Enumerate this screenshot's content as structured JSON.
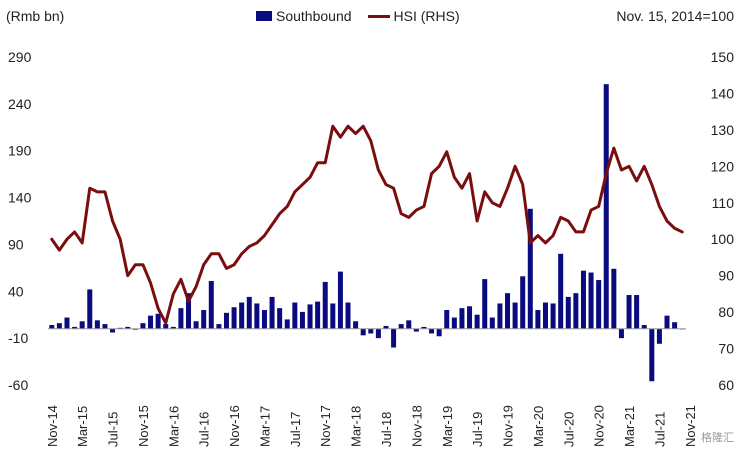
{
  "header": {
    "left_unit": "(Rmb bn)",
    "base_note": "Nov. 15, 2014=100"
  },
  "legend": {
    "bar_label": "Southbound",
    "line_label": "HSI (RHS)"
  },
  "watermark": "格隆汇",
  "colors": {
    "bar": "#0b0b80",
    "line": "#7a0e0e",
    "axis": "#888888"
  },
  "chart_data": {
    "type": "bar+line",
    "title": "",
    "x_tick_labels": [
      "Nov-14",
      "Mar-15",
      "Jul-15",
      "Nov-15",
      "Mar-16",
      "Jul-16",
      "Nov-16",
      "Mar-17",
      "Jul-17",
      "Nov-17",
      "Mar-18",
      "Jul-18",
      "Nov-18",
      "Mar-19",
      "Jul-19",
      "Nov-19",
      "Mar-20",
      "Jul-20",
      "Nov-20",
      "Mar-21",
      "Jul-21",
      "Nov-21"
    ],
    "left_axis": {
      "label": "Rmb bn",
      "ylim": [
        -60,
        290
      ],
      "ticks": [
        290,
        240,
        190,
        140,
        90,
        40,
        -10,
        -60
      ]
    },
    "right_axis": {
      "label": "Nov. 15, 2014=100",
      "ylim": [
        60,
        150
      ],
      "ticks": [
        150,
        140,
        130,
        120,
        110,
        100,
        90,
        80,
        70,
        60
      ]
    },
    "series": [
      {
        "name": "Southbound",
        "type": "bar",
        "axis": "left",
        "values": [
          4,
          6,
          12,
          2,
          8,
          42,
          9,
          5,
          -4,
          1,
          2,
          -1,
          6,
          14,
          16,
          5,
          2,
          22,
          38,
          8,
          20,
          51,
          5,
          17,
          23,
          28,
          34,
          27,
          20,
          34,
          22,
          10,
          28,
          18,
          26,
          29,
          50,
          27,
          61,
          28,
          8,
          -7,
          -5,
          -10,
          3,
          -20,
          5,
          9,
          -3,
          2,
          -5,
          -8,
          20,
          12,
          22,
          24,
          15,
          53,
          12,
          27,
          38,
          28,
          56,
          128,
          20,
          28,
          27,
          80,
          34,
          38,
          62,
          60,
          52,
          261,
          64,
          -10,
          36,
          36,
          4,
          -56,
          -16,
          14,
          7,
          0
        ],
        "start_month": "Nov-14"
      },
      {
        "name": "HSI (RHS)",
        "type": "line",
        "axis": "right",
        "values": [
          100,
          97,
          100,
          102,
          99,
          114,
          113,
          113,
          105,
          100,
          90,
          93,
          93,
          88,
          81,
          77,
          85,
          89,
          83,
          87,
          93,
          96,
          96,
          92,
          93,
          96,
          98,
          99,
          101,
          104,
          107,
          109,
          113,
          115,
          117,
          121,
          121,
          131,
          128,
          131,
          129,
          131,
          127,
          119,
          115,
          114,
          107,
          106,
          108,
          109,
          118,
          120,
          124,
          117,
          114,
          118,
          105,
          113,
          110,
          109,
          114,
          120,
          115,
          99,
          101,
          99,
          101,
          106,
          105,
          102,
          102,
          108,
          109,
          118,
          125,
          119,
          120,
          116,
          120,
          115,
          109,
          105,
          103,
          102
        ]
      }
    ]
  }
}
